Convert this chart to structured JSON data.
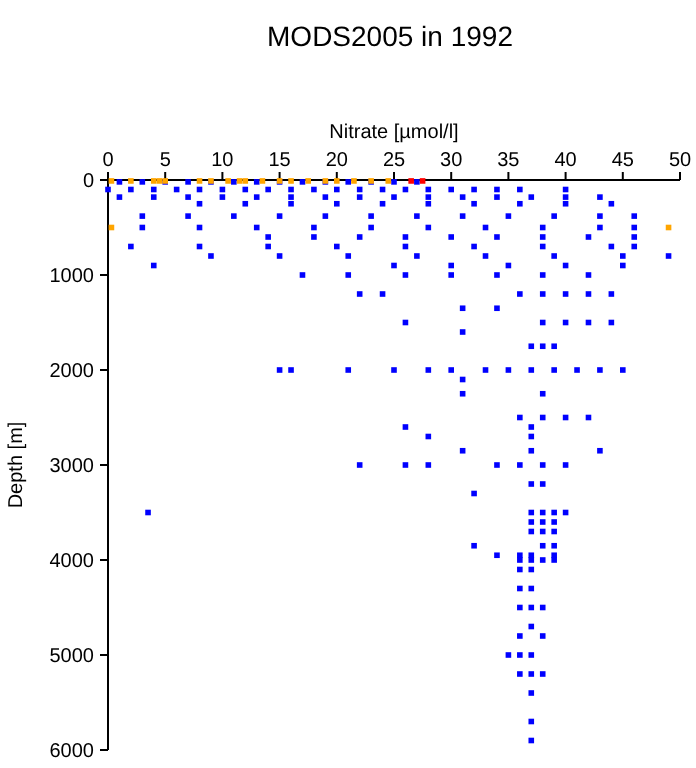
{
  "chart_data": {
    "type": "scatter",
    "title": "MODS2005 in 1992",
    "xlabel": "Nitrate [µmol/l]",
    "ylabel": "Depth [m]",
    "xlim": [
      0,
      50
    ],
    "xticks": [
      0,
      5,
      10,
      15,
      20,
      25,
      30,
      35,
      40,
      45,
      50
    ],
    "ylim": [
      6000,
      0
    ],
    "yticks": [
      0,
      1000,
      2000,
      3000,
      4000,
      5000,
      6000
    ],
    "grid": false,
    "marker": "square",
    "series": [
      {
        "color": "#0000ff",
        "x": [
          1,
          3,
          5,
          7,
          9,
          11,
          13,
          15,
          17,
          19,
          21,
          23,
          25,
          27,
          0,
          2,
          4,
          6,
          8,
          10,
          12,
          14,
          16,
          18,
          20,
          22,
          24,
          26,
          28,
          30,
          32,
          34,
          36,
          40,
          1,
          4,
          7,
          10,
          13,
          16,
          19,
          22,
          25,
          28,
          31,
          34,
          37,
          40,
          43,
          8,
          12,
          16,
          20,
          24,
          28,
          32,
          36,
          40,
          44,
          3,
          7,
          11,
          15,
          19,
          23,
          27,
          31,
          35,
          39,
          43,
          46,
          3,
          8,
          13,
          18,
          23,
          28,
          33,
          38,
          43,
          46,
          14,
          18,
          22,
          26,
          30,
          34,
          38,
          42,
          46,
          2,
          8,
          14,
          20,
          26,
          32,
          38,
          44,
          46,
          9,
          15,
          21,
          27,
          33,
          39,
          45,
          49,
          4,
          25,
          30,
          35,
          40,
          45,
          17,
          21,
          26,
          30,
          34,
          38,
          42,
          22,
          24,
          36,
          38,
          40,
          42,
          44,
          31,
          34,
          26,
          38,
          40,
          42,
          44,
          31,
          37,
          38,
          39,
          15,
          16,
          21,
          25,
          28,
          30,
          33,
          35,
          37,
          39,
          41,
          43,
          45,
          31,
          31,
          38,
          36,
          38,
          40,
          42,
          26,
          37,
          28,
          37,
          31,
          37,
          43,
          22,
          26,
          28,
          34,
          36,
          38,
          40,
          37,
          38,
          32,
          3.5,
          37,
          38,
          39,
          40,
          37,
          38,
          39,
          37,
          38,
          39,
          32,
          38,
          39,
          34,
          36,
          37,
          39,
          36,
          37,
          38,
          39,
          36,
          37,
          36,
          37,
          36,
          37,
          38,
          37,
          36,
          38,
          35,
          36,
          37,
          36,
          37,
          38,
          37,
          37,
          37
        ],
        "values": [
          20,
          20,
          20,
          20,
          20,
          20,
          20,
          20,
          20,
          20,
          20,
          20,
          20,
          20,
          100,
          100,
          100,
          100,
          100,
          100,
          100,
          100,
          100,
          100,
          100,
          100,
          100,
          100,
          100,
          100,
          100,
          100,
          100,
          100,
          180,
          180,
          180,
          180,
          180,
          180,
          180,
          180,
          180,
          180,
          180,
          180,
          180,
          180,
          180,
          250,
          250,
          250,
          250,
          250,
          250,
          250,
          250,
          250,
          250,
          380,
          380,
          380,
          380,
          380,
          380,
          380,
          380,
          380,
          380,
          380,
          380,
          500,
          500,
          500,
          500,
          500,
          500,
          500,
          500,
          500,
          500,
          600,
          600,
          600,
          600,
          600,
          600,
          600,
          600,
          600,
          700,
          700,
          700,
          700,
          700,
          700,
          700,
          700,
          700,
          800,
          800,
          800,
          800,
          800,
          800,
          800,
          800,
          900,
          900,
          900,
          900,
          900,
          900,
          1000,
          1000,
          1000,
          1000,
          1000,
          1000,
          1000,
          1200,
          1200,
          1200,
          1200,
          1200,
          1200,
          1200,
          1350,
          1350,
          1500,
          1500,
          1500,
          1500,
          1500,
          1600,
          1750,
          1750,
          1750,
          2000,
          2000,
          2000,
          2000,
          2000,
          2000,
          2000,
          2000,
          2000,
          2000,
          2000,
          2000,
          2000,
          2100,
          2250,
          2250,
          2500,
          2500,
          2500,
          2500,
          2600,
          2600,
          2700,
          2700,
          2850,
          2850,
          2850,
          3000,
          3000,
          3000,
          3000,
          3000,
          3000,
          3000,
          3200,
          3200,
          3300,
          3500,
          3500,
          3500,
          3500,
          3500,
          3600,
          3600,
          3600,
          3700,
          3700,
          3700,
          3850,
          3850,
          3850,
          3950,
          3950,
          3950,
          3950,
          4000,
          4000,
          4000,
          4000,
          4100,
          4100,
          4300,
          4300,
          4500,
          4500,
          4500,
          4700,
          4800,
          4800,
          5000,
          5000,
          5000,
          5200,
          5200,
          5200,
          5400,
          5700,
          5900
        ]
      },
      {
        "color": "#ffa500",
        "x": [
          0.3,
          2,
          4,
          4.5,
          5,
          8,
          9,
          10.5,
          11.5,
          12,
          13.5,
          15,
          16,
          17.5,
          19,
          20,
          21.5,
          23,
          24.5,
          0.3,
          49
        ],
        "values": [
          10,
          10,
          10,
          10,
          10,
          10,
          10,
          10,
          10,
          10,
          10,
          10,
          10,
          10,
          10,
          10,
          10,
          10,
          10,
          500,
          500
        ]
      },
      {
        "color": "#ff0000",
        "x": [
          26.5,
          27.5
        ],
        "values": [
          10,
          10
        ]
      }
    ]
  }
}
